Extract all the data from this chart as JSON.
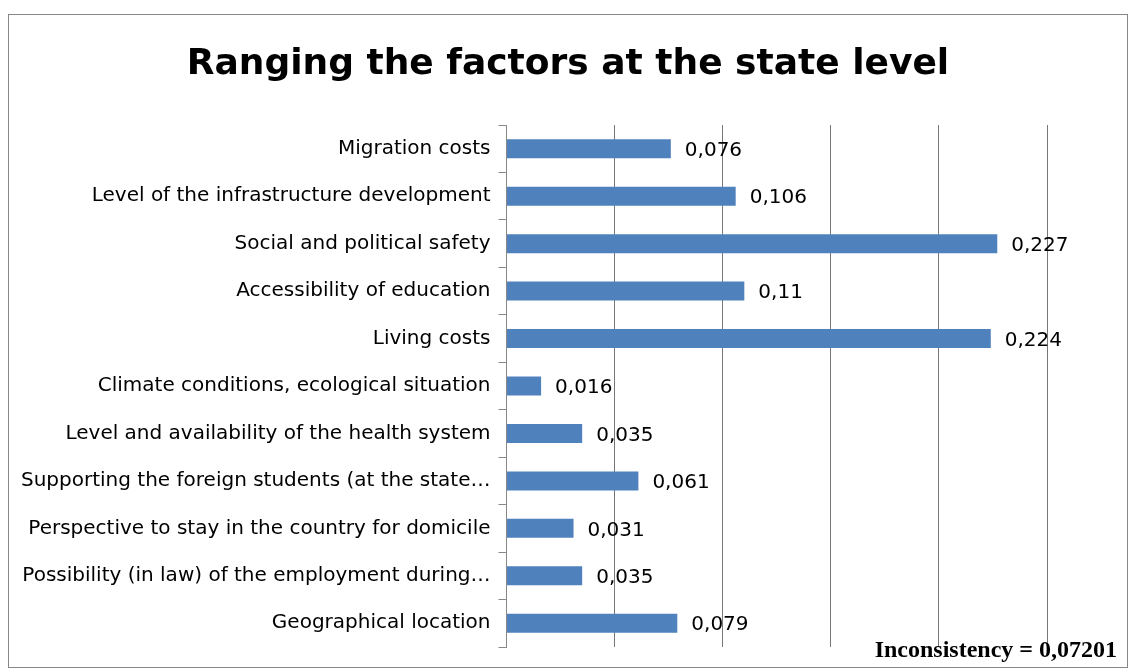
{
  "chart_data": {
    "type": "bar",
    "orientation": "horizontal",
    "title": "Ranging the factors at the state level",
    "categories": [
      "Migration costs",
      "Level of the infrastructure development",
      "Social and political safety",
      "Accessibility of education",
      "Living costs",
      "Climate conditions, ecological situation",
      "Level and availability of the health system",
      "Supporting the foreign students (at the state…",
      "Perspective to stay in the country for domicile",
      "Possibility (in law) of the employment during…",
      "Geographical location"
    ],
    "values": [
      0.076,
      0.106,
      0.227,
      0.11,
      0.224,
      0.016,
      0.035,
      0.061,
      0.031,
      0.035,
      0.079
    ],
    "value_labels": [
      "0,076",
      "0,106",
      "0,227",
      "0,11",
      "0,224",
      "0,016",
      "0,035",
      "0,061",
      "0,031",
      "0,035",
      "0,079"
    ],
    "color": "#4f81bd",
    "tick_labels": "y",
    "grid": "x",
    "legend": false,
    "annotations": [
      "Inconsistency = 0,07201"
    ]
  }
}
